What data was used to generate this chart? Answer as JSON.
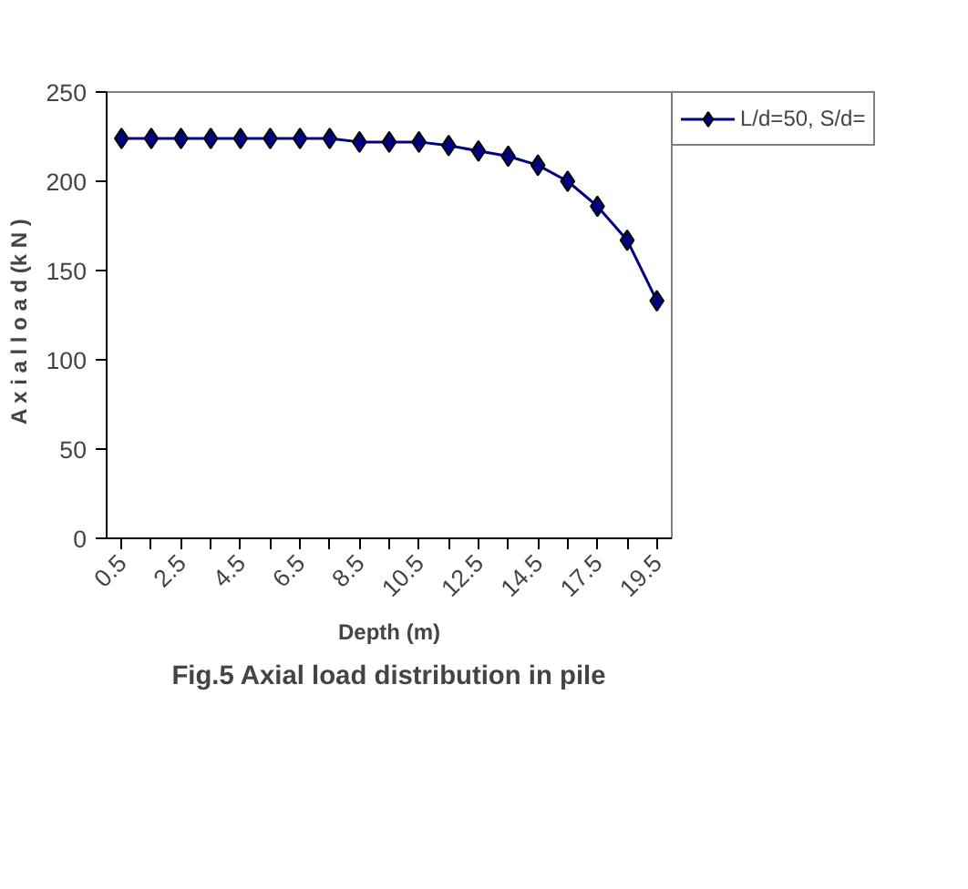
{
  "chart_data": {
    "type": "line",
    "title": "Fig.5 Axial load distribution in pile",
    "xlabel": "Depth (m)",
    "ylabel": "A x i a l  l o a d  (k N )",
    "categories": [
      "0.5",
      null,
      "2.5",
      null,
      "4.5",
      null,
      "6.5",
      null,
      "8.5",
      null,
      "10.5",
      null,
      "12.5",
      null,
      "14.5",
      null,
      "17.5",
      null,
      "19.5"
    ],
    "series": [
      {
        "name": "L/d=50, S/d=",
        "color": "#000080",
        "values": [
          224,
          224,
          224,
          224,
          224,
          224,
          224,
          224,
          222,
          222,
          222,
          220,
          217,
          214,
          209,
          200,
          186,
          167,
          133
        ]
      }
    ],
    "ylim": [
      0,
      250
    ],
    "yticks": [
      0,
      50,
      100,
      150,
      200,
      250
    ],
    "legend": "right",
    "marker": "diamond",
    "line_style": "solid"
  }
}
